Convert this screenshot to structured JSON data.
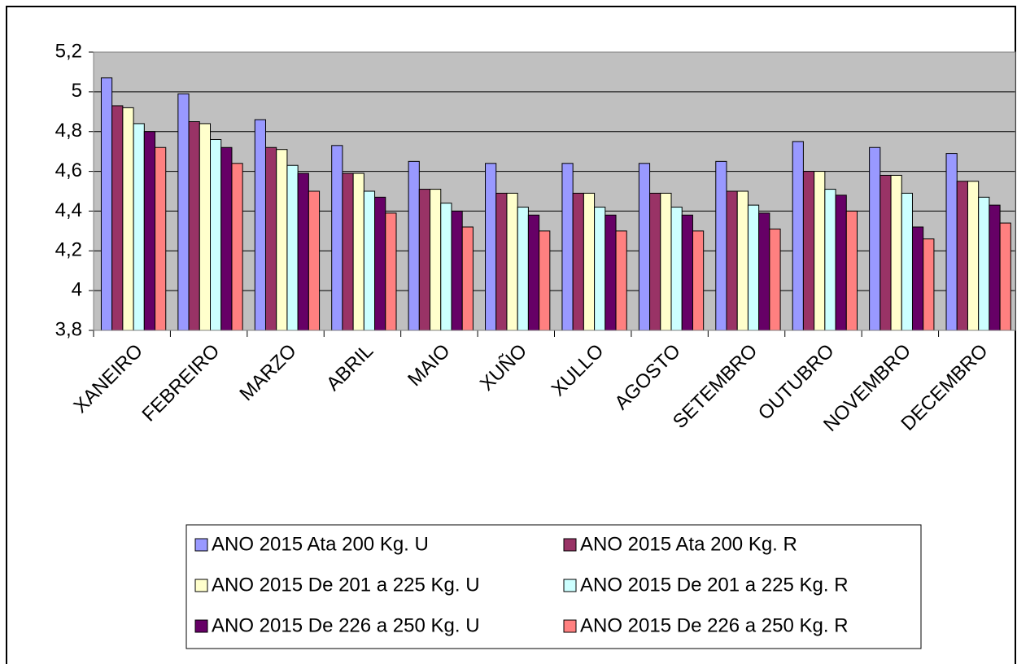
{
  "chart_data": {
    "type": "bar",
    "categories": [
      "XANEIRO",
      "FEBREIRO",
      "MARZO",
      "ABRIL",
      "MAIO",
      "XUÑO",
      "XULLO",
      "AGOSTO",
      "SETEMBRO",
      "OUTUBRO",
      "NOVEMBRO",
      "DECEMBRO"
    ],
    "series": [
      {
        "name": "ANO 2015 Ata 200 Kg. U",
        "color": "#9999ff",
        "values": [
          5.07,
          4.99,
          4.86,
          4.73,
          4.65,
          4.64,
          4.64,
          4.64,
          4.65,
          4.75,
          4.72,
          4.69
        ]
      },
      {
        "name": "ANO 2015 Ata 200 Kg. R",
        "color": "#993366",
        "values": [
          4.93,
          4.85,
          4.72,
          4.59,
          4.51,
          4.49,
          4.49,
          4.49,
          4.5,
          4.6,
          4.58,
          4.55
        ]
      },
      {
        "name": "ANO 2015 De 201 a 225 Kg. U",
        "color": "#ffffcc",
        "values": [
          4.92,
          4.84,
          4.71,
          4.59,
          4.51,
          4.49,
          4.49,
          4.49,
          4.5,
          4.6,
          4.58,
          4.55
        ]
      },
      {
        "name": "ANO 2015 De 201 a 225 Kg. R",
        "color": "#ccffff",
        "values": [
          4.84,
          4.76,
          4.63,
          4.5,
          4.44,
          4.42,
          4.42,
          4.42,
          4.43,
          4.51,
          4.49,
          4.47
        ]
      },
      {
        "name": "ANO 2015 De 226 a 250 Kg. U",
        "color": "#660066",
        "values": [
          4.8,
          4.72,
          4.59,
          4.47,
          4.4,
          4.38,
          4.38,
          4.38,
          4.39,
          4.48,
          4.32,
          4.43
        ]
      },
      {
        "name": "ANO 2015 De 226 a 250 Kg. R",
        "color": "#ff8080",
        "values": [
          4.72,
          4.64,
          4.5,
          4.39,
          4.32,
          4.3,
          4.3,
          4.3,
          4.31,
          4.4,
          4.26,
          4.34
        ]
      }
    ],
    "ylim": [
      3.8,
      5.2
    ],
    "yticks": [
      {
        "value": 3.8,
        "label": "3,8"
      },
      4,
      {
        "value": 4.2,
        "label": "4,2"
      },
      {
        "value": 4.4,
        "label": "4,4"
      },
      {
        "value": 4.6,
        "label": "4,6"
      },
      {
        "value": 4.8,
        "label": "4,8"
      },
      5,
      {
        "value": 5.2,
        "label": "5,2"
      }
    ],
    "grid": true,
    "plot_background": "#c0c0c0",
    "legend": "bottom"
  }
}
